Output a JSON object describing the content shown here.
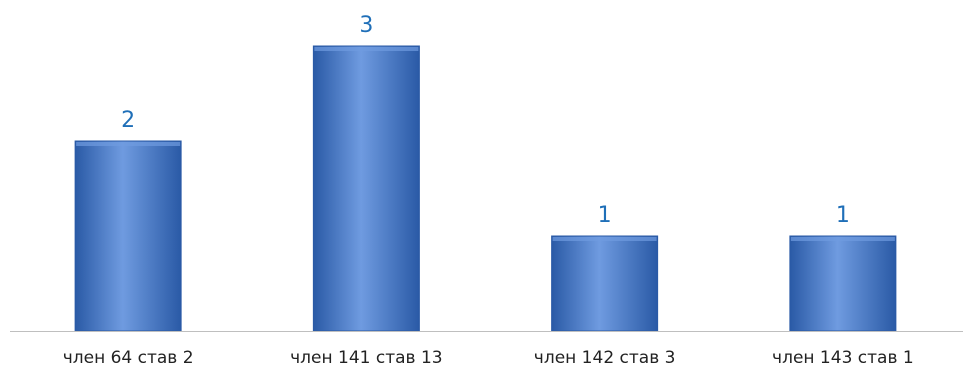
{
  "chart_data": {
    "type": "bar",
    "categories": [
      "член 64 став 2",
      "член 141 став 13",
      "член 142 став 3",
      "член 143 став 1"
    ],
    "values": [
      2,
      3,
      1,
      1
    ],
    "data_labels": [
      "2",
      "3",
      "1",
      "1"
    ],
    "title": "",
    "xlabel": "",
    "ylabel": "",
    "ylim": [
      0,
      3
    ],
    "grid": false,
    "legend": "none",
    "colors": {
      "bar": "#3f73c4",
      "bar_light": "#6f9be0",
      "bar_dark": "#2a5aa6",
      "data_label": "#1f6fb8",
      "axis": "#bfbfbf",
      "tick_label": "#222222"
    }
  }
}
